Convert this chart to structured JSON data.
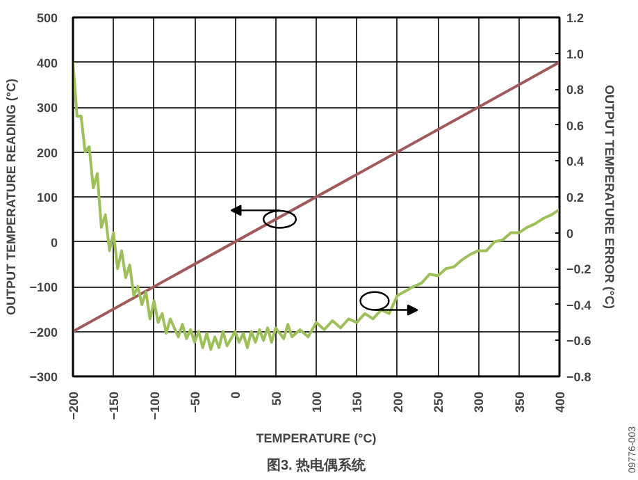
{
  "chart_data": {
    "type": "line",
    "title": "图3. 热电偶系统",
    "xlabel": "TEMPERATURE (°C)",
    "ylabel": "OUTPUT TEMPERATURE READING (°C)",
    "y2label": "OUTPUT TEMPERATURE ERROR (°C)",
    "xlim": [
      -200,
      400
    ],
    "xticks": [
      -200,
      -150,
      -100,
      -50,
      0,
      50,
      100,
      150,
      200,
      250,
      300,
      350,
      400
    ],
    "ylim": [
      -300,
      500
    ],
    "yticks": [
      -300,
      -200,
      -100,
      0,
      100,
      200,
      300,
      400,
      500
    ],
    "y2lim": [
      -0.8,
      1.2
    ],
    "y2ticks": [
      -0.8,
      -0.6,
      -0.4,
      -0.2,
      0,
      0.2,
      0.4,
      0.6,
      0.8,
      {
        "value": 1.0,
        "label": "1.0"
      },
      1.2
    ],
    "grid": true,
    "line_style": "solid",
    "annotations": [
      "09776-003"
    ],
    "series": [
      {
        "color": "#a05a5a",
        "x": [
          -200,
          400
        ],
        "values": [
          -200,
          400
        ]
      },
      {
        "color": "#9dc05a",
        "axis": "y2",
        "x": [
          -200,
          -195,
          -190,
          -185,
          -180,
          -175,
          -170,
          -165,
          -160,
          -155,
          -150,
          -145,
          -140,
          -135,
          -130,
          -125,
          -120,
          -115,
          -110,
          -105,
          -100,
          -95,
          -90,
          -85,
          -80,
          -70,
          -65,
          -60,
          -55,
          -50,
          -45,
          -40,
          -35,
          -30,
          -25,
          -20,
          -15,
          -10,
          0,
          5,
          10,
          15,
          20,
          25,
          30,
          35,
          40,
          45,
          50,
          60,
          65,
          70,
          80,
          90,
          100,
          110,
          120,
          130,
          140,
          150,
          160,
          170,
          180,
          190,
          200,
          220,
          230,
          240,
          250,
          260,
          270,
          280,
          290,
          300,
          310,
          320,
          330,
          340,
          350,
          360,
          370,
          380,
          390,
          400
        ],
        "values": [
          0.95,
          0.65,
          0.65,
          0.45,
          0.48,
          0.25,
          0.33,
          0.03,
          0.1,
          -0.1,
          0.0,
          -0.2,
          -0.1,
          -0.25,
          -0.18,
          -0.35,
          -0.3,
          -0.4,
          -0.33,
          -0.48,
          -0.38,
          -0.5,
          -0.45,
          -0.56,
          -0.48,
          -0.58,
          -0.51,
          -0.59,
          -0.54,
          -0.61,
          -0.55,
          -0.64,
          -0.56,
          -0.65,
          -0.58,
          -0.64,
          -0.55,
          -0.63,
          -0.55,
          -0.61,
          -0.56,
          -0.64,
          -0.55,
          -0.61,
          -0.54,
          -0.6,
          -0.53,
          -0.61,
          -0.53,
          -0.59,
          -0.51,
          -0.58,
          -0.54,
          -0.58,
          -0.5,
          -0.54,
          -0.49,
          -0.53,
          -0.48,
          -0.5,
          -0.45,
          -0.48,
          -0.43,
          -0.45,
          -0.35,
          -0.3,
          -0.28,
          -0.23,
          -0.24,
          -0.2,
          -0.19,
          -0.15,
          -0.12,
          -0.1,
          -0.1,
          -0.05,
          -0.04,
          0.0,
          0.0,
          0.03,
          0.05,
          0.08,
          0.1,
          0.13
        ]
      }
    ]
  }
}
